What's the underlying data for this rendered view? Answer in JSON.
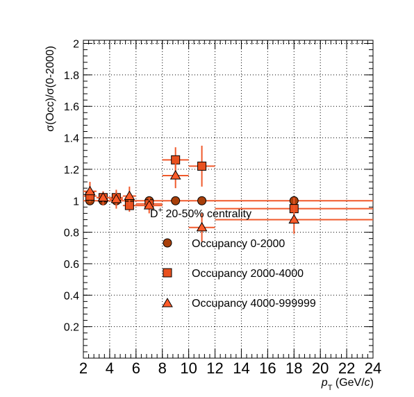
{
  "chart_data": {
    "type": "scatter",
    "title": "",
    "xlabel_var": "p",
    "xlabel_sub": "T",
    "xlabel_unit_prefix": " (GeV/",
    "xlabel_unit_italic": "c",
    "xlabel_unit_suffix": ")",
    "ylabel": "σ(Occ)/σ(0-2000)",
    "xlim": [
      2,
      24
    ],
    "ylim": [
      0,
      2.02
    ],
    "x_ticks": [
      2,
      4,
      6,
      8,
      10,
      12,
      14,
      16,
      18,
      20,
      22,
      24
    ],
    "y_ticks": [
      0.2,
      0.4,
      0.6,
      0.8,
      1,
      1.2,
      1.4,
      1.6,
      1.8,
      2
    ],
    "x_tick_labels": [
      "2",
      "4",
      "6",
      "8",
      "10",
      "12",
      "14",
      "16",
      "18",
      "20",
      "22",
      "24"
    ],
    "y_tick_labels": [
      "0.2",
      "0.4",
      "0.6",
      "0.8",
      "1",
      "1.2",
      "1.4",
      "1.6",
      "1.8",
      "2"
    ],
    "grid": true,
    "annotation": {
      "particle": "D",
      "superscript": "+",
      "text": " 20-50% centrality"
    },
    "legend_position": "center",
    "colors": {
      "series_0_fill": "#a83f0a",
      "series_1_fill": "#e8501e",
      "series_2_fill": "#ff5c2a",
      "error_bar": "#f0592b",
      "marker_stroke": "#000000"
    },
    "series": [
      {
        "name": "Occupancy 0-2000",
        "marker": "circle",
        "points": [
          {
            "x": 2.5,
            "xlo": 2,
            "xhi": 3,
            "y": 1.0,
            "ylo": 1.0,
            "yhi": 1.0
          },
          {
            "x": 3.5,
            "xlo": 3,
            "xhi": 4,
            "y": 1.0,
            "ylo": 1.0,
            "yhi": 1.0
          },
          {
            "x": 4.5,
            "xlo": 4,
            "xhi": 5,
            "y": 1.0,
            "ylo": 1.0,
            "yhi": 1.0
          },
          {
            "x": 5.5,
            "xlo": 5,
            "xhi": 6,
            "y": 1.0,
            "ylo": 1.0,
            "yhi": 1.0
          },
          {
            "x": 7,
            "xlo": 6,
            "xhi": 8,
            "y": 1.0,
            "ylo": 1.0,
            "yhi": 1.0
          },
          {
            "x": 9,
            "xlo": 8,
            "xhi": 10,
            "y": 1.0,
            "ylo": 1.0,
            "yhi": 1.0
          },
          {
            "x": 11,
            "xlo": 10,
            "xhi": 12,
            "y": 1.0,
            "ylo": 1.0,
            "yhi": 1.0
          },
          {
            "x": 18,
            "xlo": 12,
            "xhi": 24,
            "y": 1.0,
            "ylo": 1.0,
            "yhi": 1.0
          }
        ]
      },
      {
        "name": "Occupancy 2000-4000",
        "marker": "square",
        "points": [
          {
            "x": 2.5,
            "xlo": 2,
            "xhi": 3,
            "y": 1.03,
            "ylo": 0.99,
            "yhi": 1.07
          },
          {
            "x": 3.5,
            "xlo": 3,
            "xhi": 4,
            "y": 1.02,
            "ylo": 0.99,
            "yhi": 1.05
          },
          {
            "x": 4.5,
            "xlo": 4,
            "xhi": 5,
            "y": 1.02,
            "ylo": 0.98,
            "yhi": 1.06
          },
          {
            "x": 5.5,
            "xlo": 5,
            "xhi": 6,
            "y": 0.97,
            "ylo": 0.93,
            "yhi": 1.01
          },
          {
            "x": 7,
            "xlo": 6,
            "xhi": 8,
            "y": 0.98,
            "ylo": 0.94,
            "yhi": 1.02
          },
          {
            "x": 9,
            "xlo": 8,
            "xhi": 10,
            "y": 1.26,
            "ylo": 1.18,
            "yhi": 1.34
          },
          {
            "x": 11,
            "xlo": 10,
            "xhi": 12,
            "y": 1.22,
            "ylo": 1.09,
            "yhi": 1.35
          },
          {
            "x": 18,
            "xlo": 12,
            "xhi": 24,
            "y": 0.95,
            "ylo": 0.88,
            "yhi": 1.02
          }
        ]
      },
      {
        "name": "Occupancy 4000-999999",
        "marker": "triangle",
        "points": [
          {
            "x": 2.5,
            "xlo": 2,
            "xhi": 3,
            "y": 1.06,
            "ylo": 1.01,
            "yhi": 1.12
          },
          {
            "x": 3.5,
            "xlo": 3,
            "xhi": 4,
            "y": 1.02,
            "ylo": 0.97,
            "yhi": 1.06
          },
          {
            "x": 4.5,
            "xlo": 4,
            "xhi": 5,
            "y": 1.01,
            "ylo": 0.95,
            "yhi": 1.07
          },
          {
            "x": 5.5,
            "xlo": 5,
            "xhi": 6,
            "y": 1.03,
            "ylo": 0.97,
            "yhi": 1.09
          },
          {
            "x": 7,
            "xlo": 6,
            "xhi": 8,
            "y": 0.97,
            "ylo": 0.92,
            "yhi": 1.02
          },
          {
            "x": 9,
            "xlo": 8,
            "xhi": 10,
            "y": 1.16,
            "ylo": 1.08,
            "yhi": 1.24
          },
          {
            "x": 11,
            "xlo": 10,
            "xhi": 12,
            "y": 0.83,
            "ylo": 0.74,
            "yhi": 0.92
          },
          {
            "x": 18,
            "xlo": 12,
            "xhi": 24,
            "y": 0.88,
            "ylo": 0.79,
            "yhi": 0.97
          }
        ]
      }
    ]
  }
}
